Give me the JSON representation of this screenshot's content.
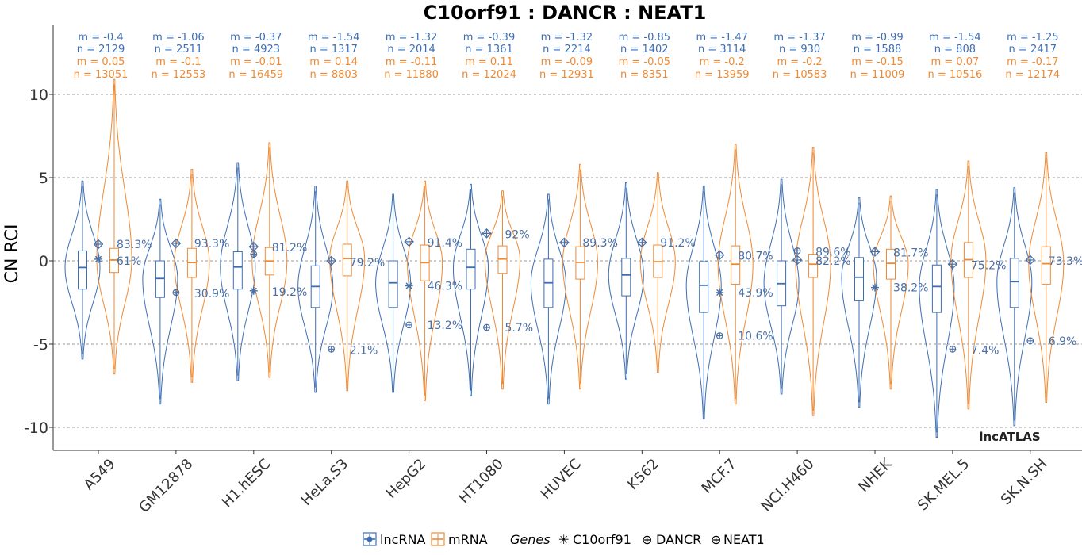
{
  "chart_data": {
    "type": "violin-box",
    "title": "C10orf91 : DANCR : NEAT1",
    "ylabel": "CN RCI",
    "xlabel": "",
    "ylim": [
      -11.5,
      13.5
    ],
    "yticks": [
      10,
      5,
      0,
      -5,
      -10
    ],
    "grid": "horizontal dashed",
    "watermark": "lncATLAS",
    "colors": {
      "lncRNA": "#3d6eb4",
      "mRNA": "#ef8a33",
      "marker": "#4a6fa5"
    },
    "legend": {
      "items": [
        "lncRNA",
        "mRNA"
      ],
      "genes_title": "Genes",
      "genes": [
        {
          "name": "C10orf91",
          "symbol": "✳"
        },
        {
          "name": "DANCR",
          "symbol": "⊕"
        },
        {
          "name": "NEAT1",
          "symbol": "⊕"
        }
      ],
      "position": "bottom"
    },
    "categories": [
      "A549",
      "GM12878",
      "H1.hESC",
      "HeLa.S3",
      "HepG2",
      "HT1080",
      "HUVEC",
      "K562",
      "MCF.7",
      "NCI.H460",
      "NHEK",
      "SK.MEL.5",
      "SK.N.SH"
    ],
    "lncRNA": [
      {
        "m_label": "m = -0.4",
        "n_label": "n = 2129",
        "median": -0.4,
        "q1": -1.7,
        "q3": 0.6,
        "wlo": -5.6,
        "whi": 4.5
      },
      {
        "m_label": "m = -1.06",
        "n_label": "n = 2511",
        "median": -1.06,
        "q1": -2.2,
        "q3": 0.0,
        "wlo": -8.3,
        "whi": 3.4
      },
      {
        "m_label": "m = -0.37",
        "n_label": "n = 4923",
        "median": -0.37,
        "q1": -1.7,
        "q3": 0.55,
        "wlo": -6.9,
        "whi": 5.6
      },
      {
        "m_label": "m = -1.54",
        "n_label": "n = 1317",
        "median": -1.54,
        "q1": -2.8,
        "q3": -0.3,
        "wlo": -7.6,
        "whi": 4.2
      },
      {
        "m_label": "m = -1.32",
        "n_label": "n = 2014",
        "median": -1.32,
        "q1": -2.8,
        "q3": 0.0,
        "wlo": -7.6,
        "whi": 3.7
      },
      {
        "m_label": "m = -0.39",
        "n_label": "n = 1361",
        "median": -0.39,
        "q1": -1.7,
        "q3": 0.7,
        "wlo": -7.8,
        "whi": 4.3
      },
      {
        "m_label": "m = -1.32",
        "n_label": "n = 2214",
        "median": -1.32,
        "q1": -2.8,
        "q3": 0.1,
        "wlo": -8.3,
        "whi": 3.7
      },
      {
        "m_label": "m = -0.85",
        "n_label": "n = 1402",
        "median": -0.85,
        "q1": -2.1,
        "q3": 0.15,
        "wlo": -6.8,
        "whi": 4.4
      },
      {
        "m_label": "m = -1.47",
        "n_label": "n = 3114",
        "median": -1.47,
        "q1": -3.1,
        "q3": -0.05,
        "wlo": -9.2,
        "whi": 4.2
      },
      {
        "m_label": "m = -1.37",
        "n_label": "n = 930",
        "median": -1.37,
        "q1": -2.7,
        "q3": 0.0,
        "wlo": -7.7,
        "whi": 4.6
      },
      {
        "m_label": "m = -0.99",
        "n_label": "n = 1588",
        "median": -0.99,
        "q1": -2.4,
        "q3": 0.2,
        "wlo": -8.5,
        "whi": 3.5
      },
      {
        "m_label": "m = -1.54",
        "n_label": "n = 808",
        "median": -1.54,
        "q1": -3.1,
        "q3": -0.25,
        "wlo": -10.3,
        "whi": 4.0
      },
      {
        "m_label": "m = -1.25",
        "n_label": "n = 2417",
        "median": -1.25,
        "q1": -2.8,
        "q3": 0.15,
        "wlo": -9.6,
        "whi": 4.1
      }
    ],
    "mRNA": [
      {
        "m_label": "m = 0.05",
        "n_label": "n = 13051",
        "median": 0.05,
        "q1": -0.7,
        "q3": 0.75,
        "wlo": -6.5,
        "whi": 10.6
      },
      {
        "m_label": "m = -0.1",
        "n_label": "n = 12553",
        "median": -0.1,
        "q1": -1.0,
        "q3": 0.75,
        "wlo": -7.0,
        "whi": 5.2
      },
      {
        "m_label": "m = -0.01",
        "n_label": "n = 16459",
        "median": -0.01,
        "q1": -0.85,
        "q3": 0.8,
        "wlo": -6.7,
        "whi": 6.8
      },
      {
        "m_label": "m = 0.14",
        "n_label": "n = 8803",
        "median": 0.14,
        "q1": -0.9,
        "q3": 1.0,
        "wlo": -7.5,
        "whi": 4.5
      },
      {
        "m_label": "m = -0.11",
        "n_label": "n = 11880",
        "median": -0.11,
        "q1": -1.2,
        "q3": 0.95,
        "wlo": -8.1,
        "whi": 4.5
      },
      {
        "m_label": "m = 0.11",
        "n_label": "n = 12024",
        "median": 0.11,
        "q1": -0.75,
        "q3": 0.9,
        "wlo": -7.4,
        "whi": 3.9
      },
      {
        "m_label": "m = -0.09",
        "n_label": "n = 12931",
        "median": -0.09,
        "q1": -1.1,
        "q3": 0.85,
        "wlo": -7.4,
        "whi": 5.5
      },
      {
        "m_label": "m = -0.05",
        "n_label": "n = 8351",
        "median": -0.05,
        "q1": -1.0,
        "q3": 0.95,
        "wlo": -6.4,
        "whi": 5.0
      },
      {
        "m_label": "m = -0.2",
        "n_label": "n = 13959",
        "median": -0.2,
        "q1": -1.4,
        "q3": 0.9,
        "wlo": -8.3,
        "whi": 6.7
      },
      {
        "m_label": "m = -0.2",
        "n_label": "n = 10583",
        "median": -0.2,
        "q1": -1.0,
        "q3": 0.4,
        "wlo": -9.0,
        "whi": 6.5
      },
      {
        "m_label": "m = -0.15",
        "n_label": "n = 11009",
        "median": -0.15,
        "q1": -1.1,
        "q3": 0.7,
        "wlo": -7.4,
        "whi": 3.6
      },
      {
        "m_label": "m = 0.07",
        "n_label": "n = 10516",
        "median": 0.07,
        "q1": -1.0,
        "q3": 1.1,
        "wlo": -8.6,
        "whi": 5.7
      },
      {
        "m_label": "m = -0.17",
        "n_label": "n = 12174",
        "median": -0.17,
        "q1": -1.4,
        "q3": 0.85,
        "wlo": -8.2,
        "whi": 6.2
      }
    ],
    "genes": [
      {
        "c10orf91": 0.1,
        "dancr": 1.0,
        "neat1": null,
        "labels": [
          {
            "y": 1.0,
            "text": "83.3%"
          },
          {
            "y": 0.0,
            "text": "61%"
          }
        ]
      },
      {
        "c10orf91": null,
        "dancr": 1.05,
        "neat1": -1.9,
        "labels": [
          {
            "y": 1.05,
            "text": "93.3%"
          },
          {
            "y": -1.95,
            "text": "30.9%"
          }
        ]
      },
      {
        "c10orf91": -1.8,
        "dancr": 0.85,
        "neat1": 0.4,
        "labels": [
          {
            "y": 0.8,
            "text": "81.2%"
          },
          {
            "y": -1.85,
            "text": "19.2%"
          }
        ]
      },
      {
        "c10orf91": null,
        "dancr": 0.0,
        "neat1": -5.3,
        "labels": [
          {
            "y": -0.1,
            "text": "79.2%"
          },
          {
            "y": -5.35,
            "text": "2.1%"
          }
        ]
      },
      {
        "c10orf91": -1.5,
        "dancr": 1.15,
        "neat1": -3.85,
        "labels": [
          {
            "y": 1.1,
            "text": "91.4%"
          },
          {
            "y": -1.5,
            "text": "46.3%"
          },
          {
            "y": -3.85,
            "text": "13.2%"
          }
        ]
      },
      {
        "c10orf91": null,
        "dancr": 1.65,
        "neat1": -4.0,
        "labels": [
          {
            "y": 1.6,
            "text": "92%"
          },
          {
            "y": -4.0,
            "text": "5.7%"
          }
        ]
      },
      {
        "c10orf91": null,
        "dancr": 1.1,
        "neat1": null,
        "labels": [
          {
            "y": 1.1,
            "text": "89.3%"
          }
        ]
      },
      {
        "c10orf91": null,
        "dancr": 1.1,
        "neat1": null,
        "labels": [
          {
            "y": 1.1,
            "text": "91.2%"
          }
        ]
      },
      {
        "c10orf91": -1.9,
        "dancr": 0.35,
        "neat1": -4.5,
        "labels": [
          {
            "y": 0.3,
            "text": "80.7%"
          },
          {
            "y": -1.9,
            "text": "43.9%"
          },
          {
            "y": -4.5,
            "text": "10.6%"
          }
        ]
      },
      {
        "c10orf91": null,
        "dancr": 0.05,
        "neat1": 0.6,
        "labels": [
          {
            "y": 0.55,
            "text": "89.6%"
          },
          {
            "y": 0.0,
            "text": "82.2%"
          }
        ]
      },
      {
        "c10orf91": -1.6,
        "dancr": 0.55,
        "neat1": null,
        "labels": [
          {
            "y": 0.5,
            "text": "81.7%"
          },
          {
            "y": -1.6,
            "text": "38.2%"
          }
        ]
      },
      {
        "c10orf91": null,
        "dancr": -0.2,
        "neat1": -5.3,
        "labels": [
          {
            "y": -0.25,
            "text": "75.2%"
          },
          {
            "y": -5.35,
            "text": "7.4%"
          }
        ]
      },
      {
        "c10orf91": null,
        "dancr": 0.05,
        "neat1": -4.8,
        "labels": [
          {
            "y": 0.0,
            "text": "73.3%"
          },
          {
            "y": -4.8,
            "text": "6.9%"
          }
        ]
      }
    ]
  }
}
